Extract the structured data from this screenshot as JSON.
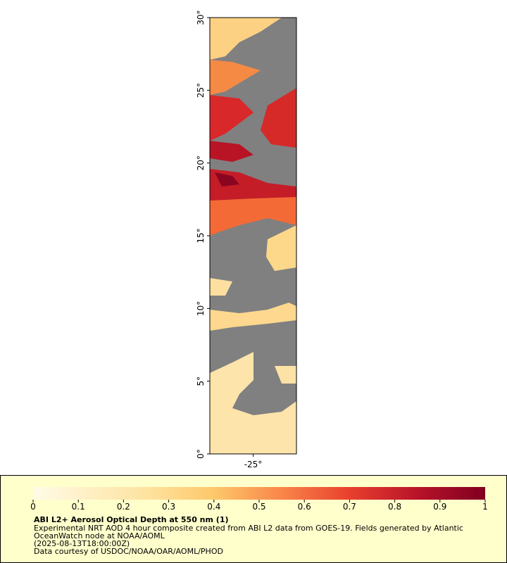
{
  "map": {
    "ylim": [
      0,
      30
    ],
    "yticks": [
      {
        "value": 0,
        "label": "0°"
      },
      {
        "value": 5,
        "label": "5°"
      },
      {
        "value": 10,
        "label": "10°"
      },
      {
        "value": 15,
        "label": "15°"
      },
      {
        "value": 20,
        "label": "20°"
      },
      {
        "value": 25,
        "label": "25°"
      },
      {
        "value": 30,
        "label": "30°"
      }
    ],
    "xlim": [
      -28,
      -22
    ],
    "xticks": [
      {
        "value": -25,
        "label": "-25°"
      }
    ]
  },
  "colorbar": {
    "lim": [
      0,
      1
    ],
    "ticks": [
      0,
      0.1,
      0.2,
      0.3,
      0.4,
      0.5,
      0.6,
      0.7,
      0.8,
      0.9,
      1
    ]
  },
  "legend": {
    "title": "ABI L2+ Aerosol Optical Depth at 550 nm (1)",
    "description": [
      "Experimental NRT AOD 4 hour composite created from ABI L2 data from GOES-19. Fields generated by Atlantic",
      "OceanWatch node at NOAA/AOML"
    ],
    "time": "(2025-08-13T18:00:00Z)",
    "credit": "Data courtesy of USDOC/NOAA/OAR/AOML/PHOD"
  }
}
